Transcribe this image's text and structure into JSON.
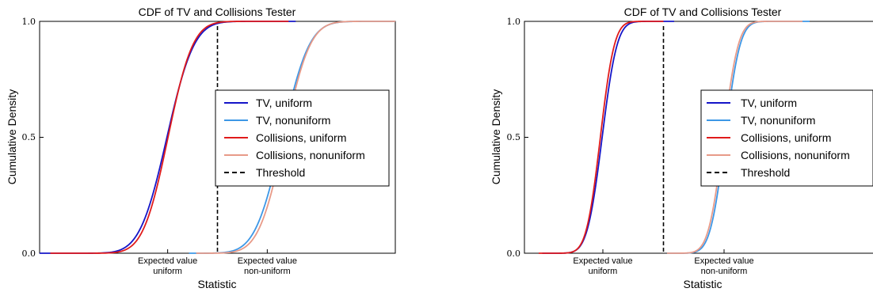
{
  "colors": {
    "tv_uniform": "#1515c8",
    "tv_nonuniform": "#3d97e6",
    "col_uniform": "#e01b1b",
    "col_nonuniform": "#e89a88",
    "threshold": "#000000",
    "axis": "#000000",
    "background": "#ffffff"
  },
  "chart_data": [
    {
      "type": "line",
      "title": "CDF of TV and Collisions Tester",
      "xlabel": "Statistic",
      "ylabel": "Cumulative Density",
      "xlim": [
        0,
        100
      ],
      "ylim": [
        0.0,
        1.0
      ],
      "yticks": [
        "0.0",
        "0.5",
        "1.0"
      ],
      "xticks": [
        {
          "x": 36,
          "line1": "Expected value",
          "line2": "uniform"
        },
        {
          "x": 64,
          "line1": "Expected value",
          "line2": "non-uniform"
        }
      ],
      "threshold_x": 50,
      "legend_location": "center-right",
      "series": [
        {
          "name": "TV, uniform",
          "color_key": "tv_uniform",
          "mean": 35.8,
          "sd": 6.0,
          "x_start": 0,
          "x_end": 72
        },
        {
          "name": "TV, nonuniform",
          "color_key": "tv_nonuniform",
          "mean": 68.2,
          "sd": 6.0,
          "x_start": 42,
          "x_end": 100
        },
        {
          "name": "Collisions, uniform",
          "color_key": "col_uniform",
          "mean": 36.1,
          "sd": 5.5,
          "x_start": 3,
          "x_end": 70
        },
        {
          "name": "Collisions, nonuniform",
          "color_key": "col_nonuniform",
          "mean": 68.8,
          "sd": 5.7,
          "x_start": 44,
          "x_end": 100
        }
      ],
      "threshold_label": "Threshold"
    },
    {
      "type": "line",
      "title": "CDF of TV and Collisions Tester",
      "xlabel": "Statistic",
      "ylabel": "Cumulative Density",
      "xlim": [
        0,
        100
      ],
      "ylim": [
        0.0,
        1.0
      ],
      "yticks": [
        "0.0",
        "0.5",
        "1.0"
      ],
      "xticks": [
        {
          "x": 22,
          "line1": "Expected value",
          "line2": "uniform"
        },
        {
          "x": 56,
          "line1": "Expected value",
          "line2": "non-uniform"
        }
      ],
      "threshold_x": 39,
      "legend_location": "center-right",
      "series": [
        {
          "name": "TV, uniform",
          "color_key": "tv_uniform",
          "mean": 21.8,
          "sd": 3.3,
          "x_start": 5,
          "x_end": 42
        },
        {
          "name": "TV, nonuniform",
          "color_key": "tv_nonuniform",
          "mean": 56.3,
          "sd": 3.3,
          "x_start": 40,
          "x_end": 80
        },
        {
          "name": "Collisions, uniform",
          "color_key": "col_uniform",
          "mean": 21.3,
          "sd": 3.1,
          "x_start": 4,
          "x_end": 39
        },
        {
          "name": "Collisions, nonuniform",
          "color_key": "col_nonuniform",
          "mean": 55.8,
          "sd": 3.3,
          "x_start": 40,
          "x_end": 78
        }
      ],
      "threshold_label": "Threshold"
    }
  ]
}
